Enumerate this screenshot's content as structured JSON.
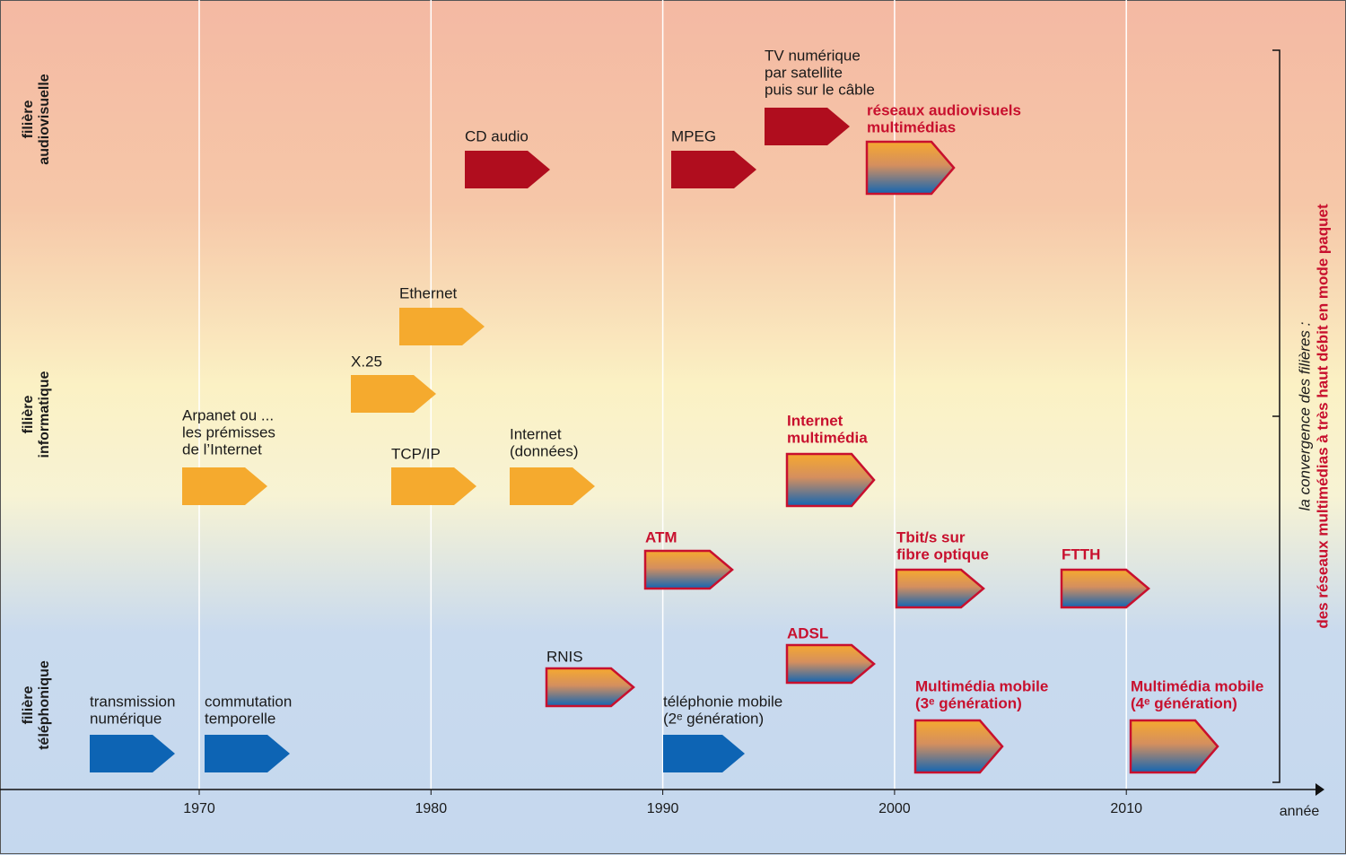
{
  "lanes": [
    [
      "filière",
      "audiovisuelle"
    ],
    [
      "filière",
      "informatique"
    ],
    [
      "filière",
      "téléphonique"
    ]
  ],
  "axis": {
    "ticks": [
      1970,
      1980,
      1990,
      2000,
      2010
    ],
    "label": "année"
  },
  "convergence": [
    "la convergence des filières :",
    "des réseaux multimédias à très haut débit en mode paquet"
  ],
  "events": [
    {
      "label": [
        "CD audio"
      ]
    },
    {
      "label": [
        "MPEG"
      ]
    },
    {
      "label": [
        "TV numérique",
        "par satellite",
        "puis sur le câble"
      ]
    },
    {
      "label": [
        "réseaux audiovisuels",
        "multimédias"
      ]
    },
    {
      "label": [
        "Ethernet"
      ]
    },
    {
      "label": [
        "X.25"
      ]
    },
    {
      "label": [
        "Arpanet ou ...",
        "les prémisses",
        "de l’Internet"
      ]
    },
    {
      "label": [
        "TCP/IP"
      ]
    },
    {
      "label": [
        "Internet",
        "(données)"
      ]
    },
    {
      "label": [
        "Internet",
        "multimédia"
      ]
    },
    {
      "label": [
        "ATM"
      ]
    },
    {
      "label": [
        "Tbit/s sur",
        "fibre optique"
      ]
    },
    {
      "label": [
        "FTTH"
      ]
    },
    {
      "label": [
        "ADSL"
      ]
    },
    {
      "label": [
        "RNIS"
      ]
    },
    {
      "label": [
        "transmission",
        "numérique"
      ]
    },
    {
      "label": [
        "commutation",
        "temporelle"
      ]
    },
    {
      "label": [
        "téléphonie mobile",
        "(2ᵉ génération)"
      ]
    },
    {
      "label": [
        "Multimédia mobile",
        "(3ᵉ génération)"
      ]
    },
    {
      "label": [
        "Multimédia mobile",
        "(4ᵉ génération)"
      ]
    }
  ]
}
